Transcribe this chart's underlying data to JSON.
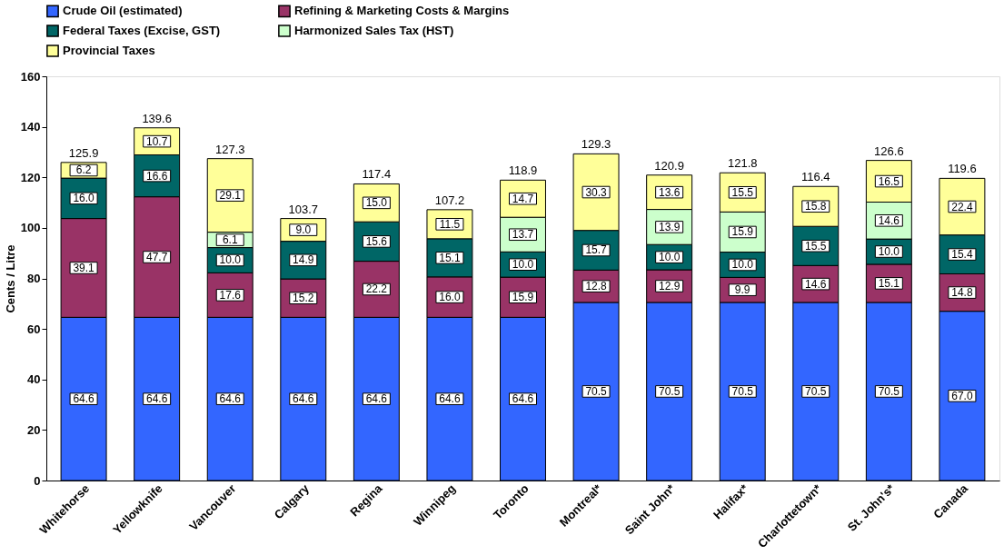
{
  "chart_data": {
    "type": "bar",
    "stacked": true,
    "ylabel": "Cents / Litre",
    "categories": [
      "Whitehorse",
      "Yellowknife",
      "Vancouver",
      "Calgary",
      "Regina",
      "Winnipeg",
      "Toronto",
      "Montreal*",
      "Saint John*",
      "Halifax*",
      "Charlottetown*",
      "St. John's*",
      "Canada"
    ],
    "series": [
      {
        "name": "Crude Oil (estimated)",
        "color": "#3366ff",
        "values": [
          64.6,
          64.6,
          64.6,
          64.6,
          64.6,
          64.6,
          64.6,
          70.5,
          70.5,
          70.5,
          70.5,
          70.5,
          67.0
        ],
        "value_labels": [
          "64.6",
          "64.6",
          "64.6",
          "64.6",
          "64.6",
          "64.6",
          "64.6",
          "70.5",
          "70.5",
          "70.5",
          "70.5",
          "70.5",
          "67.0"
        ]
      },
      {
        "name": "Refining & Marketing Costs & Margins",
        "color": "#993366",
        "values": [
          39.1,
          47.7,
          17.6,
          15.2,
          22.2,
          16.0,
          15.9,
          12.8,
          12.9,
          9.9,
          14.6,
          15.1,
          14.8
        ],
        "value_labels": [
          "39.1",
          "47.7",
          "17.6",
          "15.2",
          "22.2",
          "16.0",
          "15.9",
          "12.8",
          "12.9",
          "9.9",
          "14.6",
          "15.1",
          "14.8"
        ]
      },
      {
        "name": "Federal Taxes (Excise, GST)",
        "color": "#006666",
        "values": [
          16.0,
          16.6,
          10.0,
          14.9,
          15.6,
          15.1,
          10.0,
          15.7,
          10.0,
          10.0,
          15.5,
          10.0,
          15.4
        ],
        "value_labels": [
          "16.0",
          "16.6",
          "10.0",
          "14.9",
          "15.6",
          "15.1",
          "10.0",
          "15.7",
          "10.0",
          "10.0",
          "15.5",
          "10.0",
          "15.4"
        ]
      },
      {
        "name": "Harmonized Sales Tax (HST)",
        "color": "#ccffcc",
        "values": [
          null,
          null,
          6.1,
          null,
          null,
          null,
          13.7,
          null,
          13.9,
          15.9,
          null,
          14.6,
          null
        ],
        "value_labels": [
          null,
          null,
          "6.1",
          null,
          null,
          null,
          "13.7",
          null,
          "13.9",
          "15.9",
          null,
          "14.6",
          null
        ]
      },
      {
        "name": "Provincial Taxes",
        "color": "#ffff99",
        "values": [
          6.2,
          10.7,
          29.1,
          9.0,
          15.0,
          11.5,
          14.7,
          30.3,
          13.6,
          15.5,
          15.8,
          16.5,
          22.4
        ],
        "value_labels": [
          "6.2",
          "10.7",
          "29.1",
          "9.0",
          "15.0",
          "11.5",
          "14.7",
          "30.3",
          "13.6",
          "15.5",
          "15.8",
          "16.5",
          "22.4"
        ]
      }
    ],
    "totals": [
      "125.9",
      "139.6",
      "127.3",
      "103.7",
      "117.4",
      "107.2",
      "118.9",
      "129.3",
      "120.9",
      "121.8",
      "116.4",
      "126.6",
      "119.6"
    ],
    "ylim": [
      0,
      160
    ],
    "yticks": [
      0,
      20,
      40,
      60,
      80,
      100,
      120,
      140,
      160
    ],
    "grid": false,
    "legend": "top"
  }
}
